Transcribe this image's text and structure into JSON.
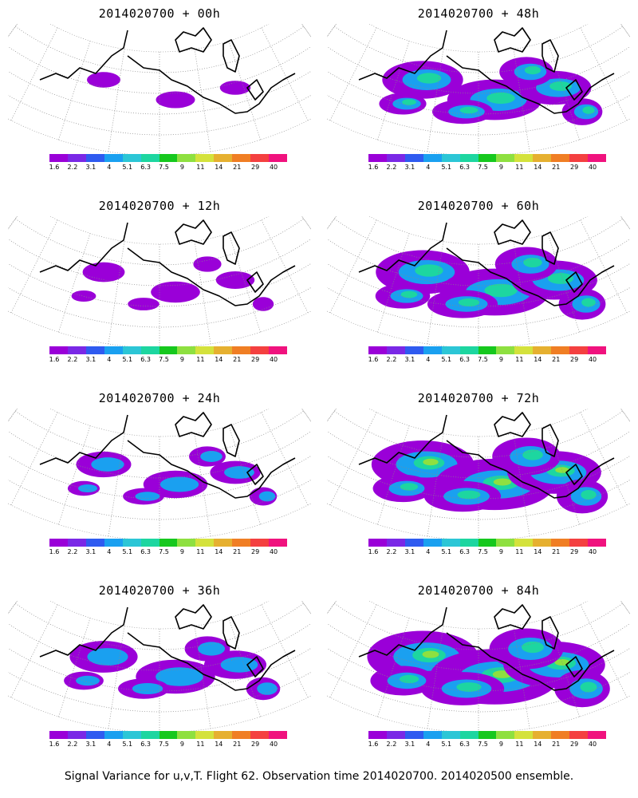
{
  "footer": "Signal Variance for u,v,T. Flight 62. Observation time 2014020700. 2014020500 ensemble.",
  "colorbar": {
    "ticks": [
      "1.6",
      "2.2",
      "3.1",
      "4",
      "5.1",
      "6.3",
      "7.5",
      "9",
      "11",
      "14",
      "21",
      "29",
      "40"
    ],
    "colors": [
      "#9a00d8",
      "#7a28e6",
      "#2f5bf0",
      "#1aa0f0",
      "#2cc6d6",
      "#1dd6a0",
      "#16c81e",
      "#8ee040",
      "#d4e23c",
      "#e6b030",
      "#f07e24",
      "#f44040",
      "#f0127e"
    ]
  },
  "panels": [
    {
      "title": "2014020700 + 00h",
      "intensity": 0.0
    },
    {
      "title": "2014020700 + 48h",
      "intensity": 0.55
    },
    {
      "title": "2014020700 + 12h",
      "intensity": 0.1
    },
    {
      "title": "2014020700 + 60h",
      "intensity": 0.7
    },
    {
      "title": "2014020700 + 24h",
      "intensity": 0.25
    },
    {
      "title": "2014020700 + 72h",
      "intensity": 0.8
    },
    {
      "title": "2014020700 + 36h",
      "intensity": 0.4
    },
    {
      "title": "2014020700 + 84h",
      "intensity": 0.9
    }
  ]
}
